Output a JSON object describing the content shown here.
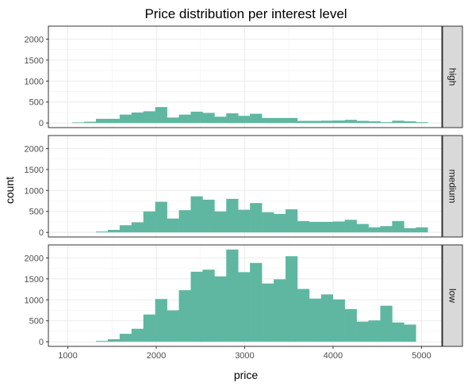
{
  "chart_data": {
    "type": "histogram",
    "title": "Price distribution per interest level",
    "xlabel": "price",
    "ylabel": "count",
    "xlim": [
      780,
      5230
    ],
    "ylim": [
      -110,
      2310
    ],
    "x_ticks": [
      1000,
      2000,
      3000,
      4000,
      5000
    ],
    "x_tick_labels": [
      "1000",
      "2000",
      "3000",
      "4000",
      "5000"
    ],
    "y_ticks": [
      0,
      500,
      1000,
      1500,
      2000
    ],
    "y_tick_labels": [
      "0",
      "500",
      "1000",
      "1500",
      "2000"
    ],
    "grid": true,
    "fill_color": "#5fb7a1",
    "bin_width": 134,
    "bin_start": 1050,
    "facets": [
      {
        "name": "high",
        "values": [
          15,
          30,
          100,
          100,
          200,
          250,
          280,
          380,
          130,
          200,
          270,
          240,
          150,
          230,
          170,
          220,
          120,
          120,
          120,
          50,
          50,
          55,
          60,
          75,
          50,
          40,
          20,
          55,
          40,
          20
        ]
      },
      {
        "name": "medium",
        "values": [
          0,
          0,
          20,
          60,
          170,
          240,
          500,
          730,
          330,
          530,
          860,
          780,
          500,
          800,
          540,
          700,
          480,
          440,
          550,
          270,
          250,
          250,
          260,
          300,
          200,
          120,
          150,
          270,
          100,
          120
        ]
      },
      {
        "name": "low",
        "values": [
          0,
          0,
          20,
          60,
          190,
          310,
          650,
          1020,
          750,
          1230,
          1670,
          1720,
          1560,
          2200,
          1660,
          1880,
          1390,
          1490,
          2040,
          1260,
          1030,
          1130,
          1010,
          780,
          480,
          510,
          860,
          460,
          410,
          0
        ]
      }
    ]
  }
}
